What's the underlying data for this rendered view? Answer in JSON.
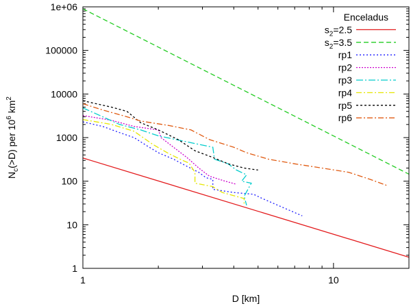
{
  "chart_data": {
    "type": "line",
    "title": "",
    "xlabel": "D [km]",
    "ylabel_parts": {
      "n": "N",
      "n_sub": "c",
      "mid": "(>D) per 10",
      "exp1": "6",
      "unit": " km",
      "exp2": "2"
    },
    "x_scale": "log",
    "y_scale": "log",
    "xlim": [
      1,
      20
    ],
    "ylim": [
      1,
      1000000
    ],
    "x_ticks": [
      {
        "value": 1,
        "label": "1"
      },
      {
        "value": 10,
        "label": "10"
      }
    ],
    "y_ticks": [
      {
        "value": 1,
        "label": "1"
      },
      {
        "value": 10,
        "label": "10"
      },
      {
        "value": 100,
        "label": "100"
      },
      {
        "value": 1000,
        "label": "1000"
      },
      {
        "value": 10000,
        "label": "10000"
      },
      {
        "value": 100000,
        "label": "100000"
      },
      {
        "value": 1000000,
        "label": "1e+06"
      }
    ],
    "legend": {
      "title": "Enceladus",
      "position": "top-right"
    },
    "series": [
      {
        "name": "s2=2.5",
        "label_parts": {
          "base": "s",
          "sub": "2",
          "rest": "=2.5"
        },
        "color": "#e31a1c",
        "dash": "",
        "points": [
          [
            1,
            340
          ],
          [
            20,
            1.8
          ]
        ]
      },
      {
        "name": "s2=3.5",
        "label_parts": {
          "base": "s",
          "sub": "2",
          "rest": "=3.5"
        },
        "color": "#22cc22",
        "dash": "7,4",
        "points": [
          [
            1,
            900000
          ],
          [
            20,
            145
          ]
        ]
      },
      {
        "name": "rp1",
        "label_parts": {
          "base": "rp1",
          "sub": "",
          "rest": ""
        },
        "color": "#1a1aff",
        "dash": "2,3",
        "points": [
          [
            1,
            2300
          ],
          [
            1.2,
            1800
          ],
          [
            1.4,
            1300
          ],
          [
            1.6,
            1000
          ],
          [
            1.8,
            650
          ],
          [
            2.0,
            450
          ],
          [
            2.3,
            320
          ],
          [
            2.6,
            220
          ],
          [
            2.9,
            160
          ],
          [
            3.1,
            120
          ],
          [
            3.3,
            110
          ],
          [
            3.3,
            65
          ],
          [
            4.0,
            55
          ],
          [
            4.8,
            50
          ],
          [
            5.2,
            40
          ],
          [
            6.0,
            28
          ],
          [
            7.5,
            16
          ]
        ]
      },
      {
        "name": "rp2",
        "label_parts": {
          "base": "rp2",
          "sub": "",
          "rest": ""
        },
        "color": "#cc00cc",
        "dash": "2,2",
        "points": [
          [
            1,
            3200
          ],
          [
            1.3,
            2500
          ],
          [
            1.6,
            1800
          ],
          [
            2.0,
            1500
          ],
          [
            2.05,
            1000
          ],
          [
            2.3,
            600
          ],
          [
            2.6,
            350
          ],
          [
            2.9,
            200
          ],
          [
            3.2,
            130
          ],
          [
            3.7,
            100
          ],
          [
            4.1,
            85
          ]
        ]
      },
      {
        "name": "rp3",
        "label_parts": {
          "base": "rp3",
          "sub": "",
          "rest": ""
        },
        "color": "#00cccc",
        "dash": "10,3,2,3",
        "points": [
          [
            1,
            4800
          ],
          [
            1.2,
            3000
          ],
          [
            1.4,
            2000
          ],
          [
            1.7,
            1500
          ],
          [
            2.0,
            1100
          ],
          [
            2.6,
            800
          ],
          [
            3.3,
            600
          ],
          [
            3.35,
            320
          ],
          [
            3.8,
            250
          ],
          [
            4.1,
            180
          ],
          [
            4.5,
            140
          ],
          [
            4.3,
            100
          ],
          [
            4.7,
            90
          ],
          [
            4.4,
            45
          ],
          [
            4.5,
            28
          ]
        ]
      },
      {
        "name": "rp4",
        "label_parts": {
          "base": "rp4",
          "sub": "",
          "rest": ""
        },
        "color": "#e6e600",
        "dash": "8,3,2,3",
        "points": [
          [
            1,
            2600
          ],
          [
            1.3,
            2000
          ],
          [
            1.6,
            1400
          ],
          [
            1.9,
            700
          ],
          [
            2.2,
            430
          ],
          [
            2.5,
            300
          ],
          [
            2.65,
            260
          ],
          [
            2.8,
            160
          ],
          [
            2.8,
            90
          ],
          [
            3.3,
            75
          ],
          [
            3.6,
            55
          ],
          [
            4.4,
            40
          ],
          [
            4.4,
            28
          ]
        ]
      },
      {
        "name": "rp5",
        "label_parts": {
          "base": "rp5",
          "sub": "",
          "rest": ""
        },
        "color": "#000000",
        "dash": "3,3",
        "points": [
          [
            1,
            7000
          ],
          [
            1.3,
            5000
          ],
          [
            1.5,
            4000
          ],
          [
            1.7,
            2200
          ],
          [
            2.0,
            1500
          ],
          [
            2.4,
            900
          ],
          [
            2.8,
            500
          ],
          [
            3.3,
            350
          ],
          [
            3.8,
            250
          ],
          [
            4.4,
            200
          ],
          [
            5.0,
            180
          ]
        ]
      },
      {
        "name": "rp6",
        "label_parts": {
          "base": "rp6",
          "sub": "",
          "rest": ""
        },
        "color": "#e05a10",
        "dash": "8,3,2,3",
        "points": [
          [
            1,
            6000
          ],
          [
            1.2,
            4300
          ],
          [
            1.5,
            3000
          ],
          [
            1.7,
            2400
          ],
          [
            2.2,
            1900
          ],
          [
            2.7,
            1500
          ],
          [
            3.2,
            900
          ],
          [
            4.0,
            600
          ],
          [
            4.5,
            450
          ],
          [
            5.5,
            320
          ],
          [
            7.0,
            250
          ],
          [
            9.0,
            200
          ],
          [
            11.5,
            160
          ],
          [
            14.0,
            110
          ],
          [
            16.5,
            78
          ]
        ]
      }
    ]
  }
}
